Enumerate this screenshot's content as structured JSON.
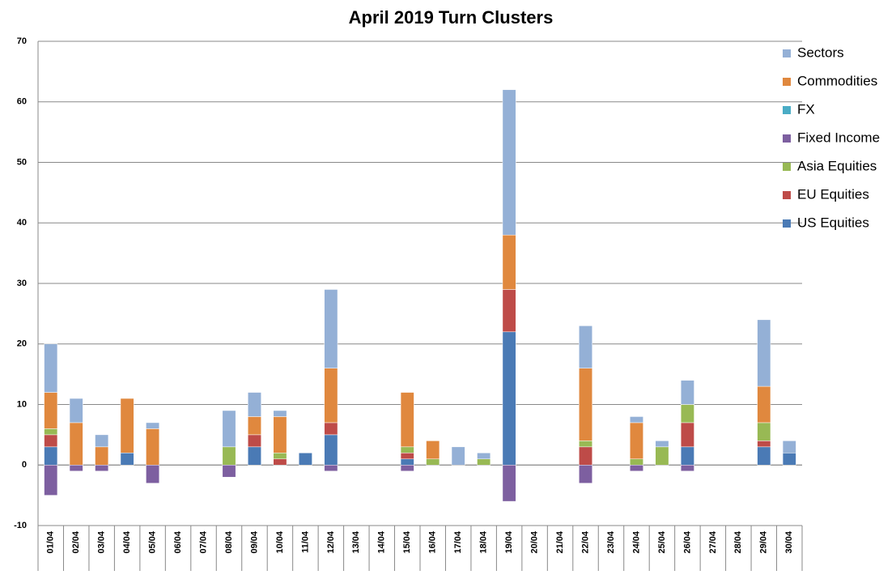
{
  "chart_data": {
    "type": "stacked_bar",
    "title": "April 2019 Turn Clusters",
    "categories": [
      "01/04",
      "02/04",
      "03/04",
      "04/04",
      "05/04",
      "06/04",
      "07/04",
      "08/04",
      "09/04",
      "10/04",
      "11/04",
      "12/04",
      "13/04",
      "14/04",
      "15/04",
      "16/04",
      "17/04",
      "18/04",
      "19/04",
      "20/04",
      "21/04",
      "22/04",
      "23/04",
      "24/04",
      "25/04",
      "26/04",
      "27/04",
      "28/04",
      "29/04",
      "30/04"
    ],
    "series": [
      {
        "name": "US Equities",
        "color": "#4a7ab5",
        "values": [
          3,
          0,
          0,
          2,
          0,
          0,
          0,
          0,
          3,
          0,
          2,
          5,
          0,
          0,
          1,
          0,
          0,
          0,
          22,
          0,
          0,
          0,
          0,
          0,
          0,
          3,
          0,
          0,
          3,
          2
        ]
      },
      {
        "name": "EU Equities",
        "color": "#be4b48",
        "values": [
          2,
          0,
          0,
          0,
          0,
          0,
          0,
          0,
          2,
          1,
          0,
          2,
          0,
          0,
          1,
          0,
          0,
          0,
          7,
          0,
          0,
          3,
          0,
          0,
          0,
          4,
          0,
          0,
          1,
          0
        ]
      },
      {
        "name": "Asia Equities",
        "color": "#98b954",
        "values": [
          1,
          0,
          0,
          0,
          0,
          0,
          0,
          3,
          0,
          1,
          0,
          0,
          0,
          0,
          1,
          1,
          0,
          1,
          0,
          0,
          0,
          1,
          0,
          1,
          3,
          3,
          0,
          0,
          3,
          0
        ]
      },
      {
        "name": "Fixed Income",
        "color": "#7d5fa0",
        "values": [
          -5,
          -1,
          -1,
          0,
          -3,
          0,
          0,
          -2,
          0,
          0,
          0,
          -1,
          0,
          0,
          -1,
          0,
          0,
          0,
          -6,
          0,
          0,
          -3,
          0,
          -1,
          0,
          -1,
          0,
          0,
          0,
          0
        ]
      },
      {
        "name": "FX",
        "color": "#4aacc5",
        "values": [
          0,
          0,
          0,
          0,
          0,
          0,
          0,
          0,
          0,
          0,
          0,
          0,
          0,
          0,
          0,
          0,
          0,
          0,
          0,
          0,
          0,
          0,
          0,
          0,
          0,
          0,
          0,
          0,
          0,
          0
        ]
      },
      {
        "name": "Commodities",
        "color": "#e0883e",
        "values": [
          6,
          7,
          3,
          9,
          6,
          0,
          0,
          0,
          3,
          6,
          0,
          9,
          0,
          0,
          9,
          3,
          0,
          0,
          9,
          0,
          0,
          12,
          0,
          6,
          0,
          0,
          0,
          0,
          6,
          0
        ]
      },
      {
        "name": "Sectors",
        "color": "#94b0d6",
        "values": [
          8,
          4,
          2,
          0,
          1,
          0,
          0,
          6,
          4,
          1,
          0,
          13,
          0,
          0,
          0,
          0,
          3,
          1,
          24,
          0,
          0,
          7,
          0,
          1,
          1,
          4,
          0,
          0,
          11,
          2
        ]
      }
    ],
    "ylim": [
      -10,
      70
    ],
    "yticks": [
      -10,
      0,
      10,
      20,
      30,
      40,
      50,
      60,
      70
    ],
    "grid": true,
    "legend": "right"
  }
}
